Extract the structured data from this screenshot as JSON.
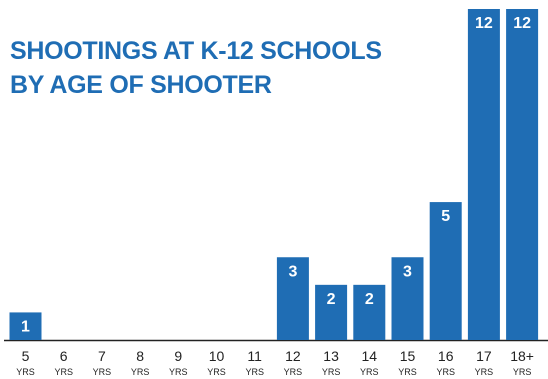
{
  "chart_data": {
    "type": "bar",
    "title_lines": [
      "SHOOTINGS AT K-12 SCHOOLS",
      "BY AGE OF SHOOTER"
    ],
    "categories": [
      "5",
      "6",
      "7",
      "8",
      "9",
      "10",
      "11",
      "12",
      "13",
      "14",
      "15",
      "16",
      "17",
      "18+"
    ],
    "category_unit": "YRS",
    "values": [
      1,
      0,
      0,
      0,
      0,
      0,
      0,
      3,
      2,
      2,
      3,
      5,
      12,
      12
    ],
    "data_labels": [
      "1",
      "",
      "",
      "",
      "",
      "",
      "",
      "3",
      "2",
      "2",
      "3",
      "5",
      "12",
      "12"
    ],
    "ylim": [
      0,
      12
    ],
    "grid": false,
    "legend": "none",
    "bar_color": "#1f6db4",
    "label_color": "#ffffff",
    "axis_color": "#222222"
  }
}
